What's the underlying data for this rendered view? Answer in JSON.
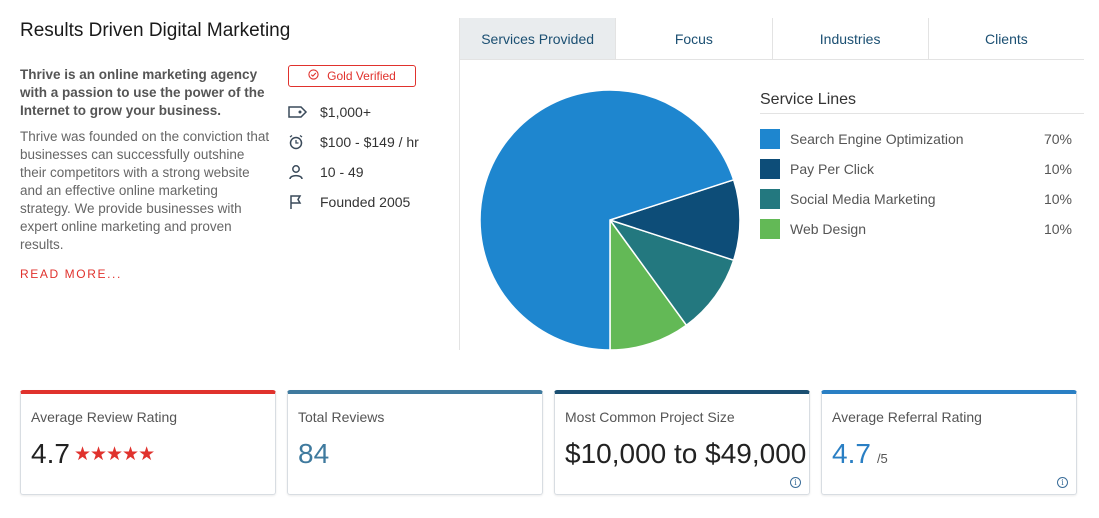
{
  "profile": {
    "title": "Results Driven Digital Marketing",
    "lead": "Thrive is an online marketing agency with a passion to use the power of the Internet to grow your business.",
    "description": "Thrive was founded on the conviction that businesses can successfully outshine their competitors with a strong website and an effective online marketing strategy. We provide businesses with expert online marketing and proven results.",
    "read_more": "READ MORE...",
    "badge": "Gold Verified",
    "facts": {
      "min_project": "$1,000+",
      "hourly_rate": "$100 - $149 / hr",
      "employees": "10 - 49",
      "founded": "Founded 2005"
    }
  },
  "tabs": [
    "Services Provided",
    "Focus",
    "Industries",
    "Clients"
  ],
  "active_tab": 0,
  "service_lines": {
    "title": "Service Lines",
    "items": [
      {
        "name": "Search Engine Optimization",
        "pct": "70%",
        "color": "#1e86cf"
      },
      {
        "name": "Pay Per Click",
        "pct": "10%",
        "color": "#0d4d78"
      },
      {
        "name": "Social Media Marketing",
        "pct": "10%",
        "color": "#23787f"
      },
      {
        "name": "Web Design",
        "pct": "10%",
        "color": "#63b956"
      }
    ]
  },
  "chart_data": {
    "type": "pie",
    "categories": [
      "Search Engine Optimization",
      "Pay Per Click",
      "Social Media Marketing",
      "Web Design"
    ],
    "values": [
      70,
      10,
      10,
      10
    ]
  },
  "stats": {
    "avg_rating_label": "Average Review Rating",
    "avg_rating_value": "4.7",
    "avg_rating_stars": "★★★★★",
    "total_reviews_label": "Total Reviews",
    "total_reviews_value": "84",
    "project_size_label": "Most Common Project Size",
    "project_size_value": "$10,000 to $49,000",
    "referral_label": "Average Referral Rating",
    "referral_value": "4.7",
    "referral_outof": "/5",
    "colors": [
      "#e0322d",
      "#3f7a9e",
      "#1b4f72",
      "#2a7fc4"
    ],
    "value_colors": [
      "#222222",
      "#3f7a9e",
      "#222222",
      "#2a7fc4"
    ]
  }
}
